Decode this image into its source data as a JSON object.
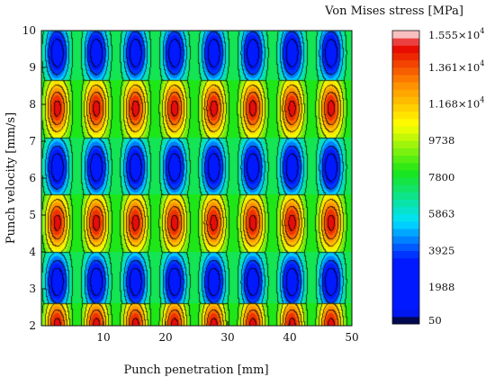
{
  "chart_data": {
    "type": "heatmap",
    "title": "",
    "xlabel": "Punch penetration [mm]",
    "ylabel": "Punch velocity [mm/s]",
    "xlim": [
      0,
      50
    ],
    "ylim": [
      2,
      10
    ],
    "x_ticks": [
      10,
      20,
      30,
      40,
      50
    ],
    "x_tick_labels": [
      "10",
      "20",
      "30",
      "40",
      "50"
    ],
    "y_ticks": [
      2,
      3,
      4,
      5,
      6,
      7,
      8,
      9,
      10
    ],
    "y_tick_labels": [
      "2",
      "3",
      "4",
      "5",
      "6",
      "7",
      "8",
      "9",
      "10"
    ],
    "value_range": [
      50,
      15550
    ],
    "lobe_period_x": 6.3,
    "lobe_rows_y": [
      2.0,
      3.2,
      4.8,
      6.3,
      7.9,
      9.4
    ],
    "lobe_row_peak": [
      "high",
      "low",
      "high",
      "low",
      "high",
      "low"
    ],
    "colorbar": {
      "title": "Von Mises stress [MPa]",
      "ticks": [
        {
          "value": 15550,
          "mantissa": "1.555",
          "exp": "4"
        },
        {
          "value": 13610,
          "mantissa": "1.361",
          "exp": "4"
        },
        {
          "value": 11680,
          "mantissa": "1.168",
          "exp": "4"
        },
        {
          "value": 9738,
          "label": "9738"
        },
        {
          "value": 7800,
          "label": "7800"
        },
        {
          "value": 5863,
          "label": "5863"
        },
        {
          "value": 3925,
          "label": "3925"
        },
        {
          "value": 1988,
          "label": "1988"
        },
        {
          "value": 50,
          "label": "50"
        }
      ],
      "times_sign": "×",
      "exp_base": "10"
    },
    "colors": {
      "low": "#000000",
      "blue": "#0019ff",
      "cyan": "#00e1ff",
      "green": "#19e619",
      "yellow": "#ffff00",
      "orange": "#ff8c00",
      "red": "#e60000",
      "top": "#ffffff"
    }
  }
}
